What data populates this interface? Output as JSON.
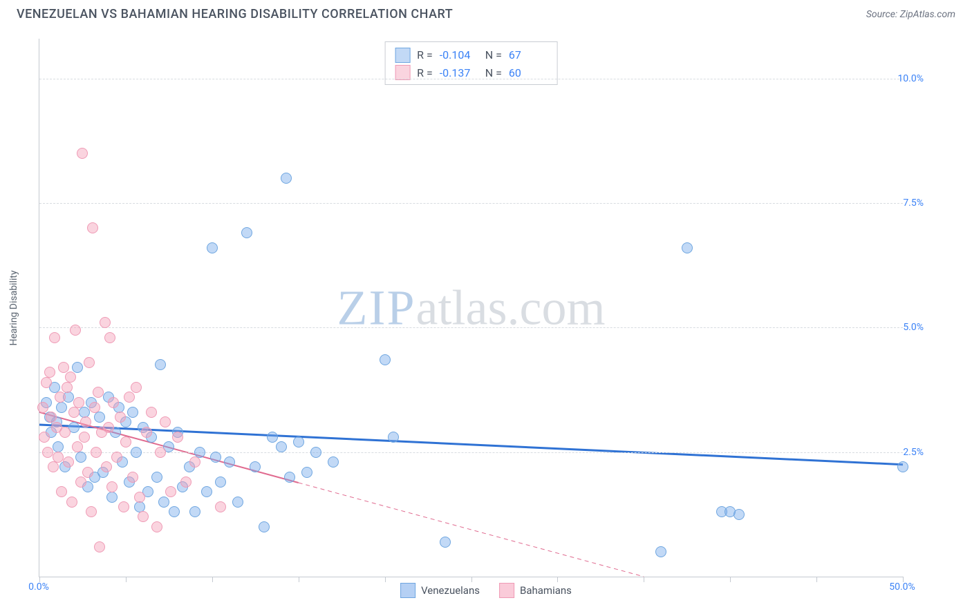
{
  "title": "VENEZUELAN VS BAHAMIAN HEARING DISABILITY CORRELATION CHART",
  "source_label": "Source: ZipAtlas.com",
  "watermark": {
    "bold": "ZIP",
    "rest": "atlas.com"
  },
  "y_axis_label": "Hearing Disability",
  "chart": {
    "type": "scatter",
    "background_color": "#ffffff",
    "grid_color": "#d7dbe0",
    "axis_color": "#c4c9d0",
    "xlim": [
      0,
      50
    ],
    "ylim": [
      0,
      10.8
    ],
    "x_tick_positions": [
      0,
      5,
      10,
      15,
      20,
      25,
      30,
      35,
      40,
      45,
      50
    ],
    "x_tick_labels": {
      "0": "0.0%",
      "50": "50.0%"
    },
    "y_gridlines": [
      2.5,
      5.0,
      7.5,
      10.0
    ],
    "y_tick_labels": {
      "2.5": "2.5%",
      "5.0": "5.0%",
      "7.5": "7.5%",
      "10.0": "10.0%"
    },
    "point_radius": 8,
    "point_border_width": 1.5,
    "series": [
      {
        "name": "Venezuelans",
        "fill": "rgba(120,170,235,0.45)",
        "stroke": "#6fa6e0",
        "trend": {
          "color": "#2f72d4",
          "width": 3,
          "x1": 0,
          "y1": 3.05,
          "x2": 50,
          "y2": 2.25,
          "dash": null,
          "solid_until_x": 50
        },
        "R": "-0.104",
        "N": "67",
        "points": [
          [
            0.4,
            3.5
          ],
          [
            0.6,
            3.2
          ],
          [
            0.7,
            2.9
          ],
          [
            0.9,
            3.8
          ],
          [
            1.0,
            3.1
          ],
          [
            1.1,
            2.6
          ],
          [
            1.3,
            3.4
          ],
          [
            1.5,
            2.2
          ],
          [
            1.7,
            3.6
          ],
          [
            2.0,
            3.0
          ],
          [
            2.2,
            4.2
          ],
          [
            2.4,
            2.4
          ],
          [
            2.6,
            3.3
          ],
          [
            2.8,
            1.8
          ],
          [
            3.0,
            3.5
          ],
          [
            3.2,
            2.0
          ],
          [
            3.5,
            3.2
          ],
          [
            3.7,
            2.1
          ],
          [
            4.0,
            3.6
          ],
          [
            4.2,
            1.6
          ],
          [
            4.4,
            2.9
          ],
          [
            4.6,
            3.4
          ],
          [
            4.8,
            2.3
          ],
          [
            5.0,
            3.1
          ],
          [
            5.2,
            1.9
          ],
          [
            5.4,
            3.3
          ],
          [
            5.6,
            2.5
          ],
          [
            5.8,
            1.4
          ],
          [
            6.0,
            3.0
          ],
          [
            6.3,
            1.7
          ],
          [
            6.5,
            2.8
          ],
          [
            6.8,
            2.0
          ],
          [
            7.0,
            4.25
          ],
          [
            7.2,
            1.5
          ],
          [
            7.5,
            2.6
          ],
          [
            7.8,
            1.3
          ],
          [
            8.0,
            2.9
          ],
          [
            8.3,
            1.8
          ],
          [
            8.7,
            2.2
          ],
          [
            9.0,
            1.3
          ],
          [
            9.3,
            2.5
          ],
          [
            9.7,
            1.7
          ],
          [
            10.0,
            6.6
          ],
          [
            10.2,
            2.4
          ],
          [
            10.5,
            1.9
          ],
          [
            11.0,
            2.3
          ],
          [
            11.5,
            1.5
          ],
          [
            12.0,
            6.9
          ],
          [
            12.5,
            2.2
          ],
          [
            13.0,
            1.0
          ],
          [
            13.5,
            2.8
          ],
          [
            14.0,
            2.6
          ],
          [
            14.3,
            8.0
          ],
          [
            14.5,
            2.0
          ],
          [
            15.0,
            2.7
          ],
          [
            15.5,
            2.1
          ],
          [
            16.0,
            2.5
          ],
          [
            17.0,
            2.3
          ],
          [
            20.0,
            4.35
          ],
          [
            20.5,
            2.8
          ],
          [
            23.5,
            0.7
          ],
          [
            36.0,
            0.5
          ],
          [
            37.5,
            6.6
          ],
          [
            39.5,
            1.3
          ],
          [
            40.0,
            1.3
          ],
          [
            40.5,
            1.25
          ],
          [
            50.0,
            2.2
          ]
        ]
      },
      {
        "name": "Bahamians",
        "fill": "rgba(245,160,185,0.45)",
        "stroke": "#ef9ab5",
        "trend": {
          "color": "#e06a8f",
          "width": 2,
          "x1": 0,
          "y1": 3.3,
          "x2": 35,
          "y2": 0.0,
          "dash": "6 5",
          "solid_until_x": 15
        },
        "R": "-0.137",
        "N": "60",
        "points": [
          [
            0.2,
            3.4
          ],
          [
            0.3,
            2.8
          ],
          [
            0.4,
            3.9
          ],
          [
            0.5,
            2.5
          ],
          [
            0.6,
            4.1
          ],
          [
            0.7,
            3.2
          ],
          [
            0.8,
            2.2
          ],
          [
            0.9,
            4.8
          ],
          [
            1.0,
            3.0
          ],
          [
            1.1,
            2.4
          ],
          [
            1.2,
            3.6
          ],
          [
            1.3,
            1.7
          ],
          [
            1.4,
            4.2
          ],
          [
            1.5,
            2.9
          ],
          [
            1.6,
            3.8
          ],
          [
            1.7,
            2.3
          ],
          [
            1.8,
            4.0
          ],
          [
            1.9,
            1.5
          ],
          [
            2.0,
            3.3
          ],
          [
            2.1,
            4.95
          ],
          [
            2.2,
            2.6
          ],
          [
            2.3,
            3.5
          ],
          [
            2.4,
            1.9
          ],
          [
            2.5,
            8.5
          ],
          [
            2.6,
            2.8
          ],
          [
            2.7,
            3.1
          ],
          [
            2.8,
            2.1
          ],
          [
            2.9,
            4.3
          ],
          [
            3.0,
            1.3
          ],
          [
            3.1,
            7.0
          ],
          [
            3.2,
            3.4
          ],
          [
            3.3,
            2.5
          ],
          [
            3.4,
            3.7
          ],
          [
            3.5,
            0.6
          ],
          [
            3.6,
            2.9
          ],
          [
            3.8,
            5.1
          ],
          [
            3.9,
            2.2
          ],
          [
            4.0,
            3.0
          ],
          [
            4.1,
            4.8
          ],
          [
            4.2,
            1.8
          ],
          [
            4.3,
            3.5
          ],
          [
            4.5,
            2.4
          ],
          [
            4.7,
            3.2
          ],
          [
            4.9,
            1.4
          ],
          [
            5.0,
            2.7
          ],
          [
            5.2,
            3.6
          ],
          [
            5.4,
            2.0
          ],
          [
            5.6,
            3.8
          ],
          [
            5.8,
            1.6
          ],
          [
            6.0,
            1.2
          ],
          [
            6.2,
            2.9
          ],
          [
            6.5,
            3.3
          ],
          [
            6.8,
            1.0
          ],
          [
            7.0,
            2.5
          ],
          [
            7.3,
            3.1
          ],
          [
            7.6,
            1.7
          ],
          [
            8.0,
            2.8
          ],
          [
            8.5,
            1.9
          ],
          [
            9.0,
            2.3
          ],
          [
            10.5,
            1.4
          ]
        ]
      }
    ]
  },
  "stats_legend_labels": {
    "R": "R =",
    "N": "N ="
  },
  "bottom_legend": [
    {
      "label": "Venezuelans",
      "fill": "rgba(120,170,235,0.55)",
      "stroke": "#6fa6e0"
    },
    {
      "label": "Bahamians",
      "fill": "rgba(245,160,185,0.55)",
      "stroke": "#ef9ab5"
    }
  ]
}
